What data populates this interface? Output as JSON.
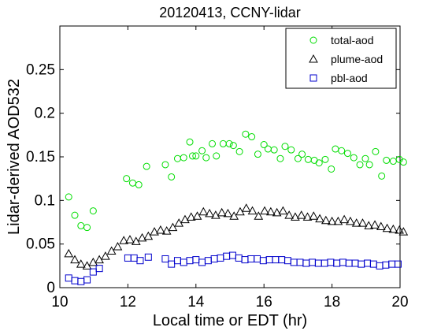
{
  "chart_data": {
    "type": "scatter",
    "title": "20120413, CCNY-lidar",
    "xlabel": "Local time or EDT (hr)",
    "ylabel": "Lidar-derived AOD532",
    "xlim": [
      10,
      20
    ],
    "ylim": [
      0,
      0.3
    ],
    "x_ticks": [
      "10",
      "12",
      "14",
      "16",
      "18",
      "20"
    ],
    "y_ticks": [
      "0",
      "0.05",
      "0.1",
      "0.15",
      "0.2",
      "0.25"
    ],
    "grid": false,
    "legend_position": "top-right",
    "series": [
      {
        "name": "total-aod",
        "marker": "circle",
        "color": "#00dd00",
        "points": [
          [
            10.26,
            0.104
          ],
          [
            10.44,
            0.083
          ],
          [
            10.62,
            0.071
          ],
          [
            10.8,
            0.069
          ],
          [
            10.98,
            0.088
          ],
          [
            11.96,
            0.125
          ],
          [
            12.14,
            0.12
          ],
          [
            12.32,
            0.118
          ],
          [
            12.55,
            0.139
          ],
          [
            13.1,
            0.141
          ],
          [
            13.28,
            0.127
          ],
          [
            13.46,
            0.148
          ],
          [
            13.64,
            0.149
          ],
          [
            13.82,
            0.167
          ],
          [
            13.9,
            0.151
          ],
          [
            14.0,
            0.151
          ],
          [
            14.18,
            0.157
          ],
          [
            14.3,
            0.149
          ],
          [
            14.48,
            0.165
          ],
          [
            14.6,
            0.151
          ],
          [
            14.8,
            0.165
          ],
          [
            14.98,
            0.165
          ],
          [
            15.1,
            0.163
          ],
          [
            15.28,
            0.156
          ],
          [
            15.46,
            0.176
          ],
          [
            15.64,
            0.173
          ],
          [
            15.82,
            0.153
          ],
          [
            16.0,
            0.164
          ],
          [
            16.12,
            0.159
          ],
          [
            16.3,
            0.158
          ],
          [
            16.48,
            0.148
          ],
          [
            16.62,
            0.162
          ],
          [
            16.8,
            0.158
          ],
          [
            17.0,
            0.148
          ],
          [
            17.12,
            0.153
          ],
          [
            17.3,
            0.147
          ],
          [
            17.48,
            0.146
          ],
          [
            17.62,
            0.143
          ],
          [
            17.8,
            0.147
          ],
          [
            17.98,
            0.136
          ],
          [
            18.1,
            0.159
          ],
          [
            18.28,
            0.157
          ],
          [
            18.46,
            0.154
          ],
          [
            18.64,
            0.149
          ],
          [
            18.82,
            0.141
          ],
          [
            18.98,
            0.148
          ],
          [
            19.1,
            0.141
          ],
          [
            19.28,
            0.156
          ],
          [
            19.46,
            0.128
          ],
          [
            19.6,
            0.146
          ],
          [
            19.8,
            0.145
          ],
          [
            19.98,
            0.147
          ],
          [
            20.1,
            0.144
          ]
        ]
      },
      {
        "name": "plume-aod",
        "marker": "triangle",
        "color": "#000000",
        "points": [
          [
            10.26,
            0.039
          ],
          [
            10.44,
            0.032
          ],
          [
            10.62,
            0.027
          ],
          [
            10.8,
            0.025
          ],
          [
            10.98,
            0.029
          ],
          [
            11.16,
            0.032
          ],
          [
            11.34,
            0.036
          ],
          [
            11.52,
            0.042
          ],
          [
            11.7,
            0.047
          ],
          [
            11.88,
            0.054
          ],
          [
            12.06,
            0.055
          ],
          [
            12.24,
            0.053
          ],
          [
            12.42,
            0.057
          ],
          [
            12.6,
            0.059
          ],
          [
            12.78,
            0.064
          ],
          [
            12.96,
            0.066
          ],
          [
            13.14,
            0.065
          ],
          [
            13.32,
            0.069
          ],
          [
            13.5,
            0.074
          ],
          [
            13.68,
            0.078
          ],
          [
            13.86,
            0.081
          ],
          [
            14.04,
            0.082
          ],
          [
            14.22,
            0.087
          ],
          [
            14.4,
            0.085
          ],
          [
            14.58,
            0.083
          ],
          [
            14.76,
            0.086
          ],
          [
            14.94,
            0.085
          ],
          [
            15.12,
            0.082
          ],
          [
            15.3,
            0.087
          ],
          [
            15.48,
            0.091
          ],
          [
            15.66,
            0.088
          ],
          [
            15.84,
            0.082
          ],
          [
            16.02,
            0.088
          ],
          [
            16.2,
            0.087
          ],
          [
            16.38,
            0.086
          ],
          [
            16.56,
            0.088
          ],
          [
            16.74,
            0.083
          ],
          [
            16.92,
            0.081
          ],
          [
            17.1,
            0.083
          ],
          [
            17.28,
            0.081
          ],
          [
            17.46,
            0.082
          ],
          [
            17.64,
            0.079
          ],
          [
            17.82,
            0.077
          ],
          [
            18.0,
            0.076
          ],
          [
            18.18,
            0.076
          ],
          [
            18.36,
            0.078
          ],
          [
            18.54,
            0.076
          ],
          [
            18.72,
            0.074
          ],
          [
            18.9,
            0.074
          ],
          [
            19.08,
            0.071
          ],
          [
            19.26,
            0.072
          ],
          [
            19.44,
            0.07
          ],
          [
            19.62,
            0.068
          ],
          [
            19.8,
            0.067
          ],
          [
            19.98,
            0.066
          ],
          [
            20.1,
            0.064
          ]
        ]
      },
      {
        "name": "pbl-aod",
        "marker": "square",
        "color": "#0000cc",
        "points": [
          [
            10.26,
            0.011
          ],
          [
            10.44,
            0.008
          ],
          [
            10.62,
            0.007
          ],
          [
            10.8,
            0.009
          ],
          [
            10.98,
            0.018
          ],
          [
            11.16,
            0.022
          ],
          [
            12.0,
            0.034
          ],
          [
            12.18,
            0.034
          ],
          [
            12.36,
            0.031
          ],
          [
            12.6,
            0.035
          ],
          [
            13.1,
            0.033
          ],
          [
            13.28,
            0.027
          ],
          [
            13.46,
            0.031
          ],
          [
            13.64,
            0.029
          ],
          [
            13.82,
            0.031
          ],
          [
            14.0,
            0.032
          ],
          [
            14.18,
            0.029
          ],
          [
            14.36,
            0.031
          ],
          [
            14.54,
            0.033
          ],
          [
            14.72,
            0.034
          ],
          [
            14.9,
            0.036
          ],
          [
            15.08,
            0.037
          ],
          [
            15.26,
            0.034
          ],
          [
            15.44,
            0.032
          ],
          [
            15.62,
            0.033
          ],
          [
            15.8,
            0.033
          ],
          [
            15.98,
            0.031
          ],
          [
            16.16,
            0.032
          ],
          [
            16.34,
            0.032
          ],
          [
            16.52,
            0.032
          ],
          [
            16.7,
            0.031
          ],
          [
            16.88,
            0.029
          ],
          [
            17.06,
            0.029
          ],
          [
            17.24,
            0.028
          ],
          [
            17.42,
            0.029
          ],
          [
            17.6,
            0.028
          ],
          [
            17.78,
            0.028
          ],
          [
            17.96,
            0.029
          ],
          [
            18.14,
            0.028
          ],
          [
            18.32,
            0.029
          ],
          [
            18.5,
            0.028
          ],
          [
            18.68,
            0.028
          ],
          [
            18.86,
            0.027
          ],
          [
            19.04,
            0.028
          ],
          [
            19.22,
            0.027
          ],
          [
            19.4,
            0.025
          ],
          [
            19.58,
            0.026
          ],
          [
            19.76,
            0.027
          ],
          [
            19.94,
            0.027
          ]
        ]
      }
    ]
  }
}
